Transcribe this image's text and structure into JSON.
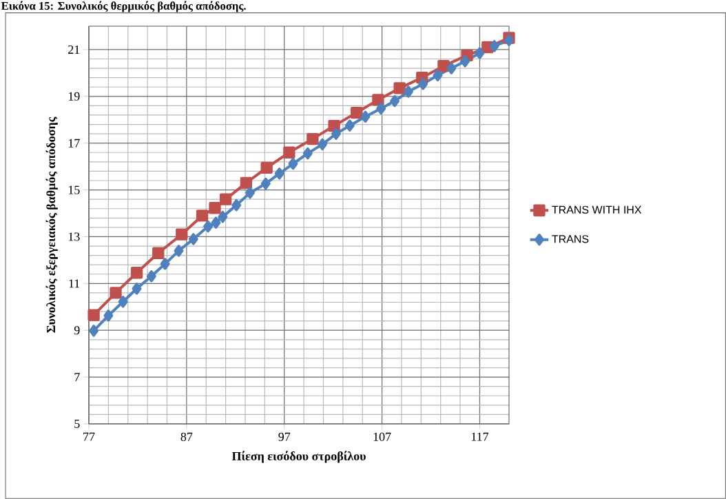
{
  "chart_data": {
    "type": "line",
    "title": "Εικόνα 15: Συνολικός θερμικός βαθμός απόδοσης.",
    "xlabel": "Πίεση εισόδου στροβίλου",
    "ylabel": "Συνολικός εξεργειακός βαθμός απόδοσης",
    "xlim": [
      77,
      120
    ],
    "ylim": [
      5,
      22
    ],
    "xticks": [
      77,
      87,
      97,
      107,
      117
    ],
    "yticks": [
      5,
      7,
      9,
      11,
      13,
      15,
      17,
      19,
      21
    ],
    "grid": true,
    "legend": "right",
    "line_style": "solid",
    "series": [
      {
        "name": "TRANS WITH IHX",
        "color": "#c0504d",
        "marker": "square",
        "x": [
          77.5,
          79.75,
          81.9,
          84.1,
          86.5,
          88.6,
          89.9,
          91.0,
          93.1,
          95.2,
          97.5,
          99.9,
          102.1,
          104.4,
          106.6,
          108.8,
          111.1,
          113.3,
          115.7,
          117.8,
          120.0
        ],
        "values": [
          9.65,
          10.6,
          11.46,
          12.3,
          13.1,
          13.9,
          14.23,
          14.6,
          15.3,
          15.95,
          16.6,
          17.18,
          17.74,
          18.3,
          18.85,
          19.35,
          19.8,
          20.3,
          20.75,
          21.1,
          21.5
        ]
      },
      {
        "name": "TRANS",
        "color": "#4f81bd",
        "marker": "diamond",
        "x": [
          77.5,
          79.0,
          80.5,
          81.9,
          83.4,
          84.8,
          86.2,
          87.7,
          89.2,
          90.0,
          90.7,
          92.1,
          93.5,
          95.1,
          96.5,
          97.9,
          99.4,
          100.9,
          102.3,
          103.7,
          105.3,
          106.9,
          108.3,
          109.7,
          111.2,
          112.7,
          114.1,
          115.5,
          117.0,
          118.5,
          120.0
        ],
        "values": [
          8.98,
          9.63,
          10.22,
          10.78,
          11.31,
          11.84,
          12.4,
          12.9,
          13.44,
          13.6,
          13.85,
          14.35,
          14.88,
          15.27,
          15.7,
          16.12,
          16.56,
          16.95,
          17.4,
          17.75,
          18.13,
          18.48,
          18.8,
          19.2,
          19.53,
          19.9,
          20.2,
          20.5,
          20.85,
          21.15,
          21.4
        ]
      }
    ]
  }
}
